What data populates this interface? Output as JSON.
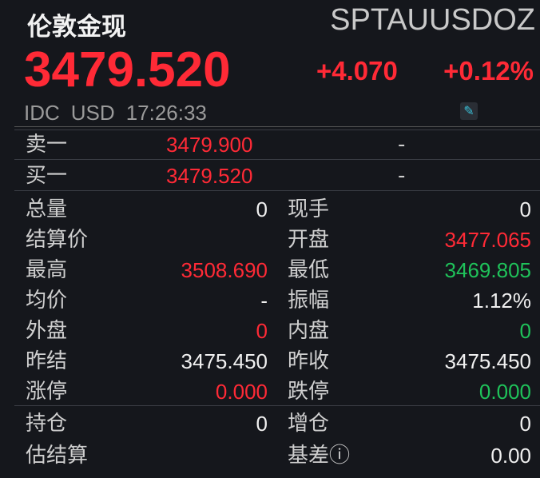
{
  "header": {
    "name": "伦敦金现",
    "code": "SPTAUUSDOZ",
    "price": "3479.520",
    "change": "+4.070",
    "change_pct": "+0.12%",
    "exchange": "IDC",
    "currency": "USD",
    "time": "17:26:33",
    "edit_icon": "pencil-icon"
  },
  "colors": {
    "up": "#ff2a36",
    "down": "#1fc25a",
    "background": "#15171c"
  },
  "orderbook": [
    {
      "label": "卖一",
      "price": "3479.900",
      "volume": "-"
    },
    {
      "label": "买一",
      "price": "3479.520",
      "volume": "-"
    }
  ],
  "stats": [
    {
      "l_label": "总量",
      "l_value": "0",
      "l_color": "white",
      "r_label": "现手",
      "r_value": "0",
      "r_color": "white"
    },
    {
      "l_label": "结算价",
      "l_value": "",
      "l_color": "white",
      "r_label": "开盘",
      "r_value": "3477.065",
      "r_color": "red"
    },
    {
      "l_label": "最高",
      "l_value": "3508.690",
      "l_color": "red",
      "r_label": "最低",
      "r_value": "3469.805",
      "r_color": "green"
    },
    {
      "l_label": "均价",
      "l_value": "-",
      "l_color": "white",
      "r_label": "振幅",
      "r_value": "1.12%",
      "r_color": "white"
    },
    {
      "l_label": "外盘",
      "l_value": "0",
      "l_color": "red",
      "r_label": "内盘",
      "r_value": "0",
      "r_color": "green"
    },
    {
      "l_label": "昨结",
      "l_value": "3475.450",
      "l_color": "white",
      "r_label": "昨收",
      "r_value": "3475.450",
      "r_color": "white"
    },
    {
      "l_label": "涨停",
      "l_value": "0.000",
      "l_color": "red",
      "r_label": "跌停",
      "r_value": "0.000",
      "r_color": "green"
    }
  ],
  "stats2": [
    {
      "l_label": "持仓",
      "l_value": "0",
      "l_color": "white",
      "r_label": "增仓",
      "r_value": "0",
      "r_color": "white"
    },
    {
      "l_label": "估结算",
      "l_value": "",
      "l_color": "white",
      "r_label": "基差ⓘ",
      "r_value": "0.00",
      "r_color": "white"
    }
  ]
}
